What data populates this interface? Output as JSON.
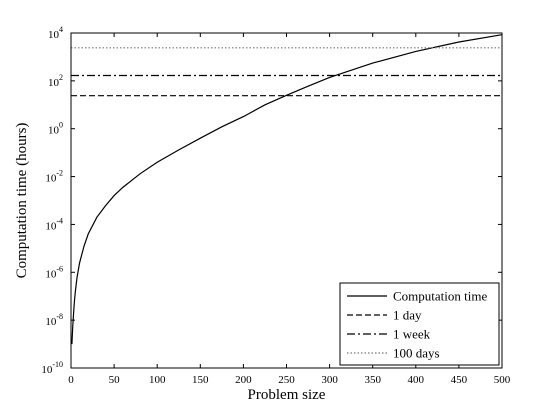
{
  "chart_data": {
    "type": "line",
    "title": "",
    "xlabel": "Problem size",
    "ylabel": "Computation time (hours)",
    "xlim": [
      0,
      500
    ],
    "ylim_log10": [
      -10,
      4
    ],
    "yscale": "log",
    "grid": false,
    "legend_position": "bottom-right",
    "x_ticks": [
      0,
      50,
      100,
      150,
      200,
      250,
      300,
      350,
      400,
      450,
      500
    ],
    "y_ticks": [
      {
        "base": "10",
        "exp": "-10"
      },
      {
        "base": "10",
        "exp": "-8"
      },
      {
        "base": "10",
        "exp": "-6"
      },
      {
        "base": "10",
        "exp": "-4"
      },
      {
        "base": "10",
        "exp": "-2"
      },
      {
        "base": "10",
        "exp": "0"
      },
      {
        "base": "10",
        "exp": "2"
      },
      {
        "base": "10",
        "exp": "4"
      }
    ],
    "series": [
      {
        "name": "Computation time",
        "style": "solid",
        "color": "#000000",
        "x": [
          1,
          2,
          3,
          4,
          5,
          7,
          10,
          15,
          20,
          30,
          40,
          50,
          60,
          80,
          100,
          125,
          150,
          175,
          200,
          225,
          250,
          275,
          300,
          350,
          400,
          450,
          500
        ],
        "y": [
          1e-09,
          5e-09,
          2e-08,
          6e-08,
          1.5e-07,
          6e-07,
          2.5e-06,
          1.2e-05,
          4e-05,
          0.0002,
          0.0006,
          0.0016,
          0.0035,
          0.013,
          0.04,
          0.13,
          0.4,
          1.2,
          3.2,
          10,
          25,
          60,
          140,
          550,
          1700,
          4200,
          8500
        ]
      },
      {
        "name": "1 day",
        "style": "dashed",
        "color": "#000000",
        "x": [
          0,
          500
        ],
        "y": [
          24,
          24
        ]
      },
      {
        "name": "1 week",
        "style": "dashdot",
        "color": "#000000",
        "x": [
          0,
          500
        ],
        "y": [
          168,
          168
        ]
      },
      {
        "name": "100 days",
        "style": "dotted",
        "color": "#777777",
        "x": [
          0,
          500
        ],
        "y": [
          2400,
          2400
        ]
      }
    ]
  }
}
